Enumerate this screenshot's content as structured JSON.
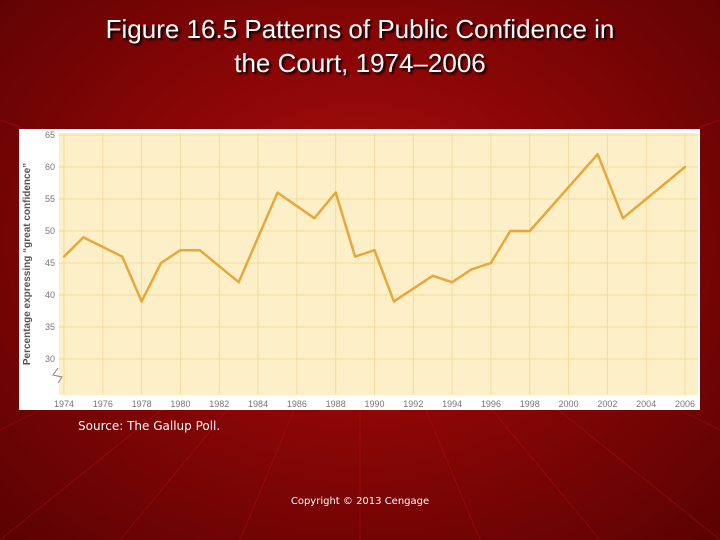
{
  "slide": {
    "title_line1": "Figure 16.5   Patterns of Public Confidence in",
    "title_line2": "the Court,  1974–2006",
    "source": "Source: The Gallup Poll.",
    "copyright": "Copyright © 2013 Cengage"
  },
  "colors": {
    "background": "#8a0606",
    "plot_background": "#fdf0c8",
    "grid": "#f2dc9c",
    "line": "#e9a73b",
    "axis_text": "#777777"
  },
  "chart_data": {
    "type": "line",
    "title": "",
    "xlabel": "",
    "ylabel": "Percentage expressing “great confidence”",
    "xlim": [
      1974,
      2006
    ],
    "ylim": [
      25,
      65
    ],
    "x_ticks": [
      1974,
      1976,
      1978,
      1980,
      1982,
      1984,
      1986,
      1988,
      1990,
      1992,
      1994,
      1996,
      1998,
      2000,
      2002,
      2004,
      2006
    ],
    "y_ticks": [
      30,
      35,
      40,
      45,
      50,
      55,
      60,
      65
    ],
    "y_axis_break": true,
    "grid": true,
    "series": [
      {
        "x": [
          1974,
          1975,
          1977,
          1978,
          1979,
          1980,
          1981,
          1983,
          1985,
          1986.9,
          1988,
          1989,
          1990,
          1991,
          1993,
          1994,
          1995,
          1996,
          1997,
          1998,
          2001.5,
          2002.8,
          2006
        ],
        "values": [
          46,
          49,
          46,
          39,
          45,
          47,
          47,
          42,
          56,
          52,
          56,
          46,
          47,
          39,
          43,
          42,
          44,
          45,
          50,
          50,
          62,
          52,
          60
        ]
      }
    ]
  }
}
